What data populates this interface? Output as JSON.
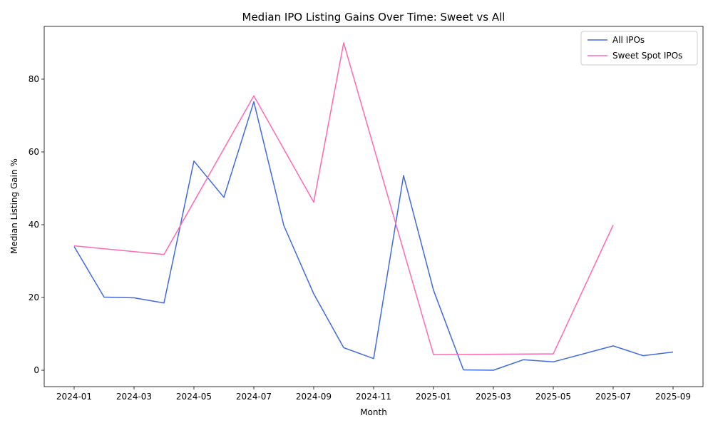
{
  "chart_data": {
    "type": "line",
    "title": "Median IPO Listing Gains Over Time: Sweet vs All",
    "xlabel": "Month",
    "ylabel": "Median Listing Gain %",
    "xlim": [
      "2023-12",
      "2025-10"
    ],
    "ylim": [
      -4.5,
      94.5
    ],
    "x_ticks": [
      "2024-01",
      "2024-03",
      "2024-05",
      "2024-07",
      "2024-09",
      "2024-11",
      "2025-01",
      "2025-03",
      "2025-05",
      "2025-07",
      "2025-09"
    ],
    "y_ticks": [
      0,
      20,
      40,
      60,
      80
    ],
    "grid": false,
    "legend_position": "top-right",
    "series": [
      {
        "name": "All IPOs",
        "color": "#4169e1",
        "points": [
          {
            "x": "2024-01",
            "y": 34
          },
          {
            "x": "2024-02",
            "y": 20.1
          },
          {
            "x": "2024-03",
            "y": 19.9
          },
          {
            "x": "2024-04",
            "y": 18.5
          },
          {
            "x": "2024-05",
            "y": 57.5
          },
          {
            "x": "2024-06",
            "y": 47.5
          },
          {
            "x": "2024-07",
            "y": 73.8
          },
          {
            "x": "2024-08",
            "y": 39.8
          },
          {
            "x": "2024-09",
            "y": 21
          },
          {
            "x": "2024-10",
            "y": 6.2
          },
          {
            "x": "2024-11",
            "y": 3.2
          },
          {
            "x": "2024-12",
            "y": 53.5
          },
          {
            "x": "2025-01",
            "y": 22
          },
          {
            "x": "2025-02",
            "y": 0.1
          },
          {
            "x": "2025-03",
            "y": 0
          },
          {
            "x": "2025-04",
            "y": 2.9
          },
          {
            "x": "2025-05",
            "y": 2.3
          },
          {
            "x": "2025-07",
            "y": 6.7
          },
          {
            "x": "2025-08",
            "y": 4
          },
          {
            "x": "2025-09",
            "y": 5
          }
        ]
      },
      {
        "name": "Sweet Spot IPOs",
        "color": "#ff69b4",
        "points": [
          {
            "x": "2024-01",
            "y": 34.2
          },
          {
            "x": "2024-04",
            "y": 31.8
          },
          {
            "x": "2024-07",
            "y": 75.4
          },
          {
            "x": "2024-09",
            "y": 46.2
          },
          {
            "x": "2024-10",
            "y": 90
          },
          {
            "x": "2025-01",
            "y": 4.3
          },
          {
            "x": "2025-05",
            "y": 4.5
          },
          {
            "x": "2025-07",
            "y": 39.9
          }
        ]
      }
    ]
  }
}
